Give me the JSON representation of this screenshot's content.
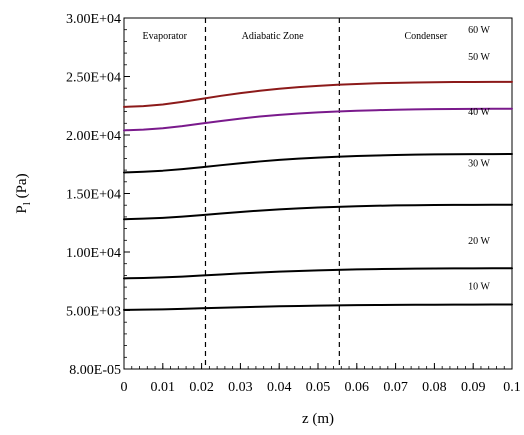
{
  "chart_data": {
    "type": "line",
    "title": "",
    "xlabel": "z (m)",
    "ylabel": {
      "main": "P",
      "sub": "l",
      "unit": " (Pa)"
    },
    "xlim": [
      0,
      0.1
    ],
    "ylim": [
      0,
      30000
    ],
    "x_ticks": [
      0,
      0.01,
      0.02,
      0.03,
      0.04,
      0.05,
      0.06,
      0.07,
      0.08,
      0.09,
      0.1
    ],
    "x_tick_labels": [
      "0",
      "0.01",
      "0.02",
      "0.03",
      "0.04",
      "0.05",
      "0.06",
      "0.07",
      "0.08",
      "0.09",
      "0.1"
    ],
    "y_ticks": [
      0,
      5000,
      10000,
      15000,
      20000,
      25000,
      30000
    ],
    "y_tick_labels": [
      "8.00E-05",
      "5.00E+03",
      "1.00E+04",
      "1.50E+04",
      "2.00E+04",
      "2.50E+04",
      "3.00E+04"
    ],
    "grid": false,
    "region_boundaries": [
      0.021,
      0.0555
    ],
    "regions": [
      {
        "name": "Evaporator",
        "x_center": 0.0105
      },
      {
        "name": "Adiabatic Zone",
        "x_center": 0.0383
      },
      {
        "name": "Condenser",
        "x_center": 0.0778
      }
    ],
    "x": [
      0,
      0.005,
      0.01,
      0.015,
      0.02,
      0.025,
      0.03,
      0.035,
      0.04,
      0.045,
      0.05,
      0.055,
      0.06,
      0.065,
      0.07,
      0.075,
      0.08,
      0.085,
      0.09,
      0.095,
      0.1
    ],
    "series": [
      {
        "name": "10 W",
        "color": "#000000",
        "label_x": 0.0915,
        "label_y": 6800,
        "values": [
          5050,
          5070,
          5100,
          5140,
          5190,
          5240,
          5280,
          5320,
          5360,
          5390,
          5420,
          5440,
          5460,
          5470,
          5480,
          5490,
          5495,
          5500,
          5505,
          5508,
          5510
        ]
      },
      {
        "name": "20 W",
        "color": "#000000",
        "label_x": 0.0915,
        "label_y": 10700,
        "values": [
          7750,
          7780,
          7830,
          7900,
          7990,
          8080,
          8170,
          8250,
          8320,
          8380,
          8430,
          8470,
          8510,
          8540,
          8560,
          8580,
          8590,
          8600,
          8605,
          8608,
          8610
        ]
      },
      {
        "name": "30 W",
        "color": "#000000",
        "label_x": 0.0915,
        "label_y": 17300,
        "values": [
          12800,
          12850,
          12920,
          13020,
          13150,
          13290,
          13420,
          13540,
          13640,
          13730,
          13800,
          13860,
          13910,
          13950,
          13980,
          14000,
          14015,
          14025,
          14030,
          14035,
          14040
        ]
      },
      {
        "name": "40 W",
        "color": "#000000",
        "label_x": 0.0915,
        "label_y": 21700,
        "values": [
          16800,
          16860,
          16950,
          17080,
          17240,
          17420,
          17590,
          17740,
          17870,
          17980,
          18070,
          18140,
          18200,
          18250,
          18290,
          18320,
          18340,
          18355,
          18365,
          18370,
          18375
        ]
      },
      {
        "name": "50 W",
        "color": "#7a1a8c",
        "label_x": 0.0915,
        "label_y": 26400,
        "values": [
          20400,
          20460,
          20580,
          20760,
          20980,
          21200,
          21400,
          21580,
          21720,
          21840,
          21930,
          22010,
          22070,
          22120,
          22160,
          22190,
          22210,
          22225,
          22235,
          22240,
          22245
        ]
      },
      {
        "name": "60 W",
        "color": "#8c1a1a",
        "label_x": 0.0915,
        "label_y": 28700,
        "values": [
          22400,
          22470,
          22610,
          22830,
          23090,
          23350,
          23580,
          23780,
          23950,
          24090,
          24200,
          24290,
          24360,
          24420,
          24460,
          24490,
          24510,
          24525,
          24535,
          24540,
          24545
        ]
      }
    ]
  }
}
